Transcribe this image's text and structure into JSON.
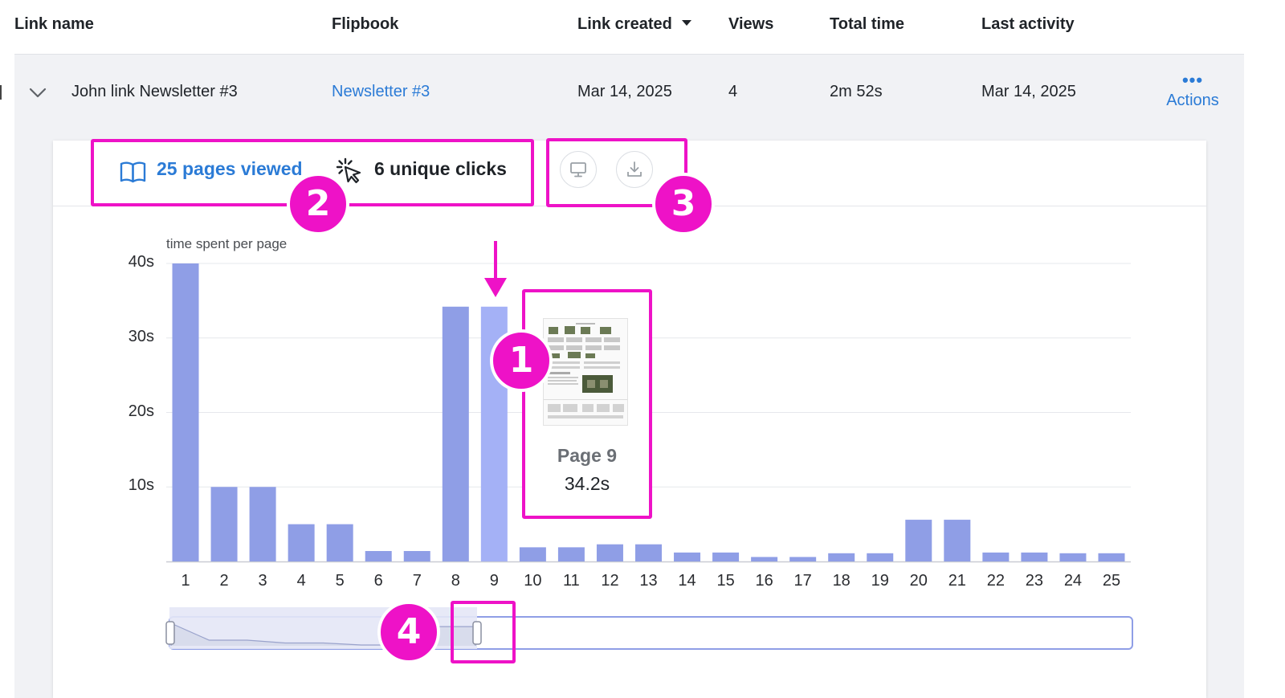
{
  "table": {
    "columns": [
      {
        "label": "Link name"
      },
      {
        "label": "Flipbook"
      },
      {
        "label": "Link created"
      },
      {
        "label": "Views"
      },
      {
        "label": "Total time"
      },
      {
        "label": "Last activity"
      }
    ],
    "row": {
      "link_name": "John link Newsletter #3",
      "flipbook": "Newsletter #3",
      "link_created": "Mar 14, 2025",
      "views": "4",
      "total_time": "2m 52s",
      "last_activity": "Mar 14, 2025",
      "actions_label": "Actions",
      "actions_icon": "more-horizontal-icon"
    }
  },
  "stats": {
    "pages_viewed": "25 pages viewed",
    "unique_clicks": "6 unique clicks",
    "pages_icon": "book-open-icon",
    "clicks_icon": "cursor-click-icon"
  },
  "toolbar": {
    "present_icon": "monitor-icon",
    "download_icon": "download-icon"
  },
  "chart_data": {
    "type": "bar",
    "ylabel": "time spent per page",
    "yticks": [
      "10s",
      "20s",
      "30s",
      "40s"
    ],
    "ylim": [
      0,
      40
    ],
    "categories": [
      "1",
      "2",
      "3",
      "4",
      "5",
      "6",
      "7",
      "8",
      "9",
      "10",
      "11",
      "12",
      "13",
      "14",
      "15",
      "16",
      "17",
      "18",
      "19",
      "20",
      "21",
      "22",
      "23",
      "24",
      "25"
    ],
    "values": [
      40,
      10,
      10,
      5,
      5,
      1.4,
      1.4,
      34.2,
      34.2,
      1.9,
      1.9,
      2.3,
      2.3,
      1.2,
      1.2,
      0.6,
      0.6,
      1.1,
      1.1,
      5.6,
      5.6,
      1.2,
      1.2,
      1.1,
      1.1
    ],
    "highlighted_index": 8,
    "colors": {
      "bar": "#8f9ee6",
      "highlight": "#a4b1f6",
      "grid": "#e6e8ec"
    }
  },
  "tooltip": {
    "page_label": "Page 9",
    "value_label": "34.2s"
  },
  "annotations": {
    "color": "#ee12c7",
    "labels": [
      "1",
      "2",
      "3",
      "4"
    ]
  }
}
